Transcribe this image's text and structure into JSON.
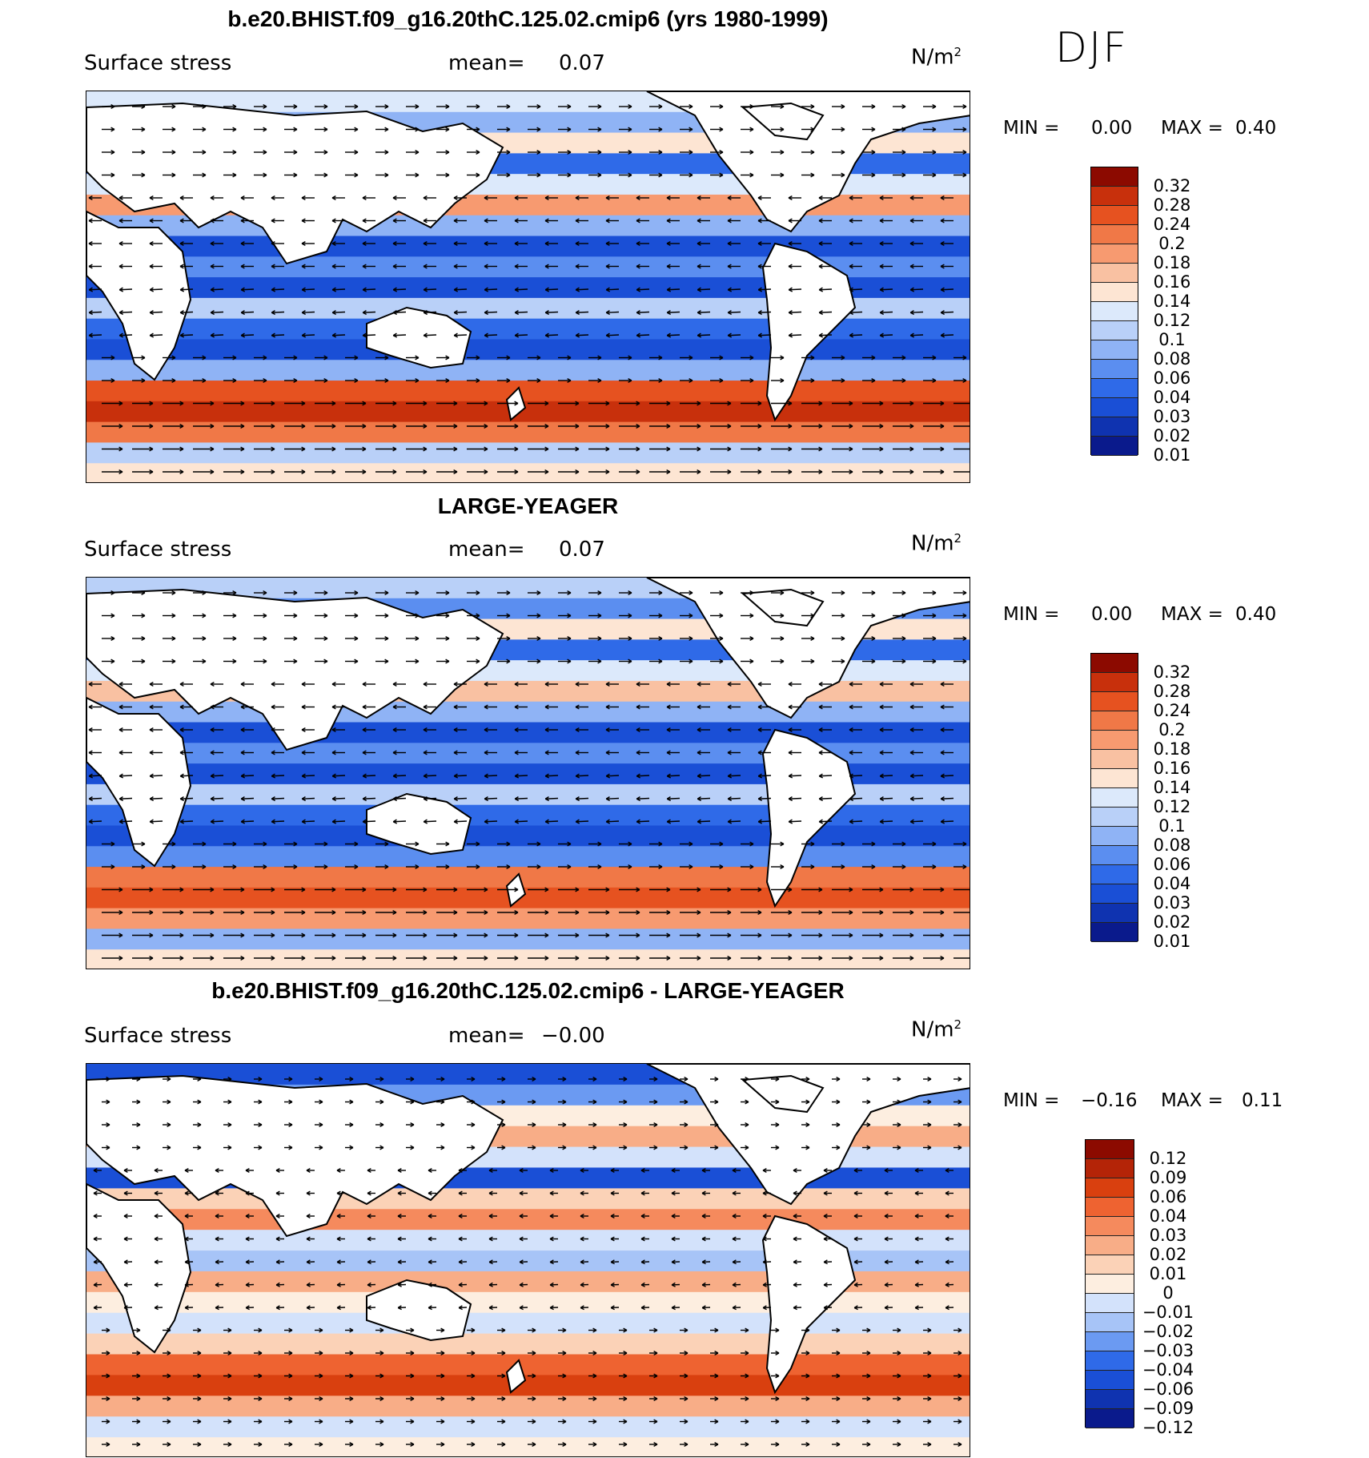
{
  "season": "DJF",
  "colors": {
    "absolute": [
      "#0a1a8c",
      "#0f33b0",
      "#1a4fd6",
      "#2f6ae8",
      "#5b8ef0",
      "#8fb3f5",
      "#b9d0f8",
      "#dce9fb",
      "#fde5d3",
      "#f9c1a2",
      "#f79a70",
      "#f07847",
      "#e65220",
      "#c8300c",
      "#8c0a00"
    ],
    "diff": [
      "#0a1a8c",
      "#0f33b0",
      "#1a4fd6",
      "#2f6ae8",
      "#6b9af2",
      "#a7c4f7",
      "#d3e2fb",
      "#fdeee0",
      "#fbd2b7",
      "#f8ad87",
      "#f58a5d",
      "#ee6331",
      "#d9400f",
      "#b42407",
      "#8c0a00"
    ]
  },
  "panels": [
    {
      "title": "b.e20.BHIST.f09_g16.20thC.125.02.cmip6 (yrs 1980-1999)",
      "variable": "Surface stress",
      "mean_label": "mean=",
      "mean_value": "0.07",
      "units_base": "N/m",
      "units_exp": "2",
      "min_label": "MIN =",
      "min_value": "0.00",
      "max_label": "MAX =",
      "max_value": "0.40",
      "scale": "absolute",
      "ticks": [
        "0.32",
        "0.28",
        "0.24",
        "0.2",
        "0.18",
        "0.16",
        "0.14",
        "0.12",
        "0.1",
        "0.08",
        "0.06",
        "0.04",
        "0.03",
        "0.02",
        "0.01"
      ]
    },
    {
      "title": "LARGE-YEAGER",
      "variable": "Surface stress",
      "mean_label": "mean=",
      "mean_value": "0.07",
      "units_base": "N/m",
      "units_exp": "2",
      "min_label": "MIN =",
      "min_value": "0.00",
      "max_label": "MAX =",
      "max_value": "0.40",
      "scale": "absolute",
      "ticks": [
        "0.32",
        "0.28",
        "0.24",
        "0.2",
        "0.18",
        "0.16",
        "0.14",
        "0.12",
        "0.1",
        "0.08",
        "0.06",
        "0.04",
        "0.03",
        "0.02",
        "0.01"
      ]
    },
    {
      "title": "b.e20.BHIST.f09_g16.20thC.125.02.cmip6 - LARGE-YEAGER",
      "variable": "Surface stress",
      "mean_label": "mean=",
      "mean_value": "−0.00",
      "units_base": "N/m",
      "units_exp": "2",
      "min_label": "MIN =",
      "min_value": "−0.16",
      "max_label": "MAX =",
      "max_value": "0.11",
      "scale": "diff",
      "ticks": [
        "0.12",
        "0.09",
        "0.06",
        "0.04",
        "0.03",
        "0.02",
        "0.01",
        "0",
        "−0.01",
        "−0.02",
        "−0.03",
        "−0.04",
        "−0.06",
        "−0.09",
        "−0.12"
      ]
    }
  ]
}
